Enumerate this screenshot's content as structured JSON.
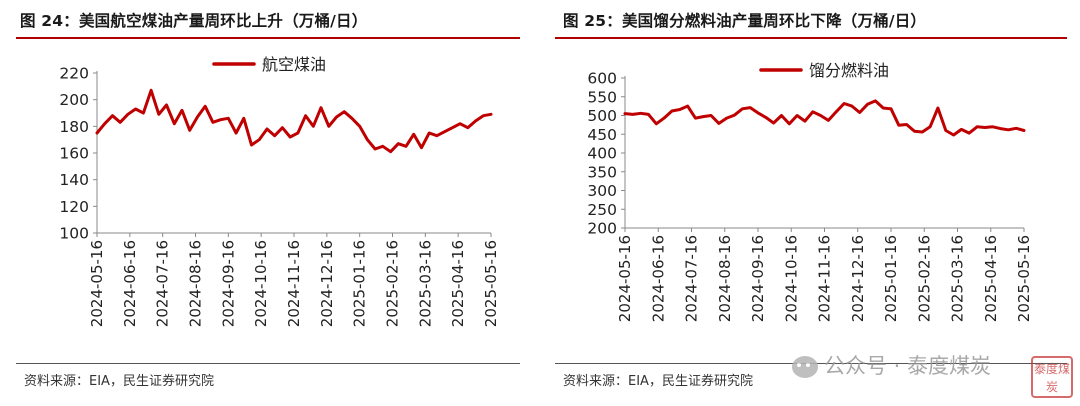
{
  "left": {
    "title": "图 24：美国航空煤油产量周环比上升（万桶/日）",
    "source": "资料来源：EIA，民生证券研究院"
  },
  "right": {
    "title": "图 25：美国馏分燃料油产量周环比下降（万桶/日）",
    "source": "资料来源：EIA，民生证券研究院"
  },
  "watermark": {
    "text": "公众号 · 泰度煤炭",
    "icon": "wechat-icon"
  },
  "stamp": {
    "text": "泰度煤炭"
  },
  "colors": {
    "line": "#c00000",
    "title_rule": "#b00000"
  },
  "chart_data": [
    {
      "type": "line",
      "series": [
        {
          "name": "航空煤油",
          "values": [
            175,
            182,
            188,
            183,
            189,
            193,
            190,
            207,
            189,
            196,
            182,
            192,
            177,
            187,
            195,
            183,
            185,
            186,
            175,
            186,
            166,
            170,
            178,
            173,
            179,
            172,
            175,
            188,
            180,
            194,
            180,
            187,
            191,
            186,
            180,
            170,
            163,
            165,
            161,
            167,
            165,
            174,
            164,
            175,
            173,
            176,
            179,
            182,
            179,
            184,
            188,
            189
          ]
        }
      ],
      "x_ticks": [
        "2024-05-16",
        "2024-06-16",
        "2024-07-16",
        "2024-08-16",
        "2024-09-16",
        "2024-10-16",
        "2024-11-16",
        "2024-12-16",
        "2025-01-16",
        "2025-02-16",
        "2025-03-16",
        "2025-04-16",
        "2025-05-16"
      ],
      "y_ticks": [
        100,
        120,
        140,
        160,
        180,
        200,
        220
      ],
      "ylim": [
        100,
        220
      ],
      "grid": false,
      "legend_position": "top-center"
    },
    {
      "type": "line",
      "series": [
        {
          "name": "馏分燃料油",
          "values": [
            505,
            503,
            506,
            503,
            478,
            493,
            512,
            516,
            525,
            493,
            497,
            500,
            479,
            493,
            501,
            518,
            521,
            507,
            495,
            480,
            500,
            478,
            500,
            485,
            510,
            500,
            487,
            510,
            532,
            525,
            508,
            530,
            539,
            520,
            518,
            474,
            476,
            458,
            456,
            470,
            520,
            460,
            448,
            463,
            453,
            470,
            468,
            470,
            465,
            462,
            466,
            460
          ]
        }
      ],
      "x_ticks": [
        "2024-05-16",
        "2024-06-16",
        "2024-07-16",
        "2024-08-16",
        "2024-09-16",
        "2024-10-16",
        "2024-11-16",
        "2024-12-16",
        "2025-01-16",
        "2025-02-16",
        "2025-03-16",
        "2025-04-16",
        "2025-05-16"
      ],
      "y_ticks": [
        200,
        250,
        300,
        350,
        400,
        450,
        500,
        550,
        600
      ],
      "ylim": [
        200,
        600
      ],
      "grid": false,
      "legend_position": "top-center"
    }
  ]
}
